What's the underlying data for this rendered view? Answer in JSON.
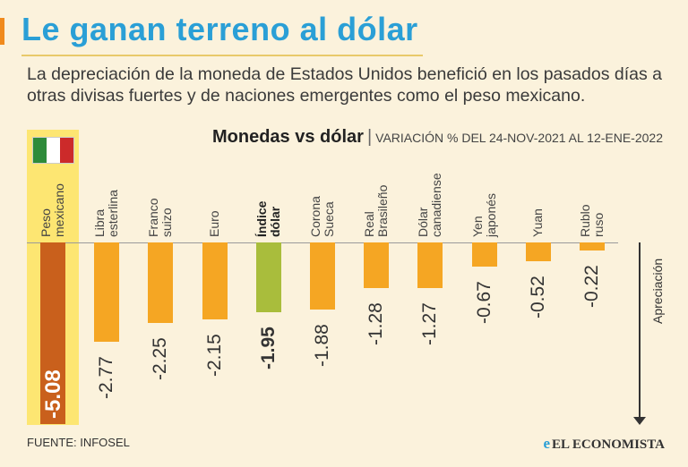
{
  "header": {
    "title": "Le ganan terreno al dólar",
    "subtitle": "La depreciación de la moneda de Estados Unidos benefició en los pasados días a otras divisas fuertes y de naciones emergentes como el peso mexicano."
  },
  "colors": {
    "accent": "#f08a1c",
    "title": "#2a9fd6",
    "bar_orange": "#f5a623",
    "bar_highlight": "#c9601c",
    "bar_index": "#a9bd3c",
    "highlight_band": "#fde672",
    "flag_green": "#2e8b3a",
    "flag_white": "#ffffff",
    "flag_red": "#cc2a2a"
  },
  "chart_data": {
    "type": "bar",
    "title": "Monedas vs dólar",
    "separator": "|",
    "subtitle": "VARIACIÓN % DEL 24-NOV-2021 AL 12-ENE-2022",
    "categories": [
      [
        "Peso",
        "mexicano"
      ],
      [
        "Libra",
        "esterlina"
      ],
      [
        "Franco",
        "suizo"
      ],
      [
        "Euro"
      ],
      [
        "Índice",
        "dólar"
      ],
      [
        "Corona",
        "Sueca"
      ],
      [
        "Real",
        "Brasileño"
      ],
      [
        "Dólar",
        "canadiense"
      ],
      [
        "Yen",
        "japonés"
      ],
      [
        "Yuan"
      ],
      [
        "Rublo",
        "ruso"
      ]
    ],
    "values": [
      -5.08,
      -2.77,
      -2.25,
      -2.15,
      -1.95,
      -1.88,
      -1.28,
      -1.27,
      -0.67,
      -0.52,
      -0.22
    ],
    "value_labels": [
      "-5.08",
      "-2.77",
      "-2.25",
      "-2.15",
      "-1.95",
      "-1.88",
      "-1.28",
      "-1.27",
      "-0.67",
      "-0.52",
      "-0.22"
    ],
    "highlight_index": 0,
    "index_index": 4,
    "arrow_label": "Apreciación",
    "ylim": [
      -5.08,
      0
    ]
  },
  "footer": {
    "source": "FUENTE: INFOSEL",
    "logo": "EL ECONOMISTA",
    "logo_mark": "e"
  }
}
